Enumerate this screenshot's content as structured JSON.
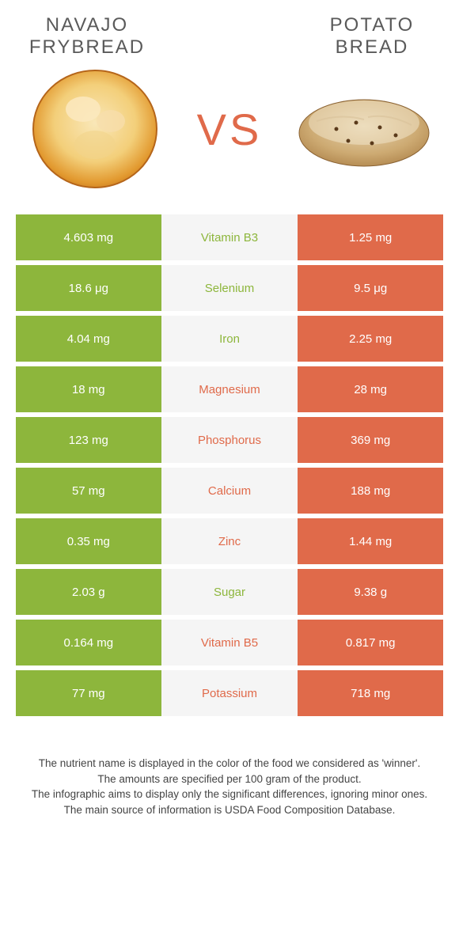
{
  "colors": {
    "green": "#8db63c",
    "orange": "#e06a4a",
    "gray_bg": "#f5f5f5",
    "title_color": "#5a5a5a"
  },
  "food_left": {
    "title": "NAVAJO FRYBREAD"
  },
  "food_right": {
    "title": "POTATO BREAD"
  },
  "vs": "VS",
  "rows": [
    {
      "nutrient": "Vitamin B3",
      "left": "4.603 mg",
      "right": "1.25 mg",
      "winner": "left"
    },
    {
      "nutrient": "Selenium",
      "left": "18.6 μg",
      "right": "9.5 μg",
      "winner": "left"
    },
    {
      "nutrient": "Iron",
      "left": "4.04 mg",
      "right": "2.25 mg",
      "winner": "left"
    },
    {
      "nutrient": "Magnesium",
      "left": "18 mg",
      "right": "28 mg",
      "winner": "right"
    },
    {
      "nutrient": "Phosphorus",
      "left": "123 mg",
      "right": "369 mg",
      "winner": "right"
    },
    {
      "nutrient": "Calcium",
      "left": "57 mg",
      "right": "188 mg",
      "winner": "right"
    },
    {
      "nutrient": "Zinc",
      "left": "0.35 mg",
      "right": "1.44 mg",
      "winner": "right"
    },
    {
      "nutrient": "Sugar",
      "left": "2.03 g",
      "right": "9.38 g",
      "winner": "left"
    },
    {
      "nutrient": "Vitamin B5",
      "left": "0.164 mg",
      "right": "0.817 mg",
      "winner": "right"
    },
    {
      "nutrient": "Potassium",
      "left": "77 mg",
      "right": "718 mg",
      "winner": "right"
    }
  ],
  "footer": {
    "l1": "The nutrient name is displayed in the color of the food we considered as 'winner'.",
    "l2": "The amounts are specified per 100 gram of the product.",
    "l3": "The infographic aims to display only the significant differences, ignoring minor ones.",
    "l4": "The main source of information is USDA Food Composition Database."
  }
}
